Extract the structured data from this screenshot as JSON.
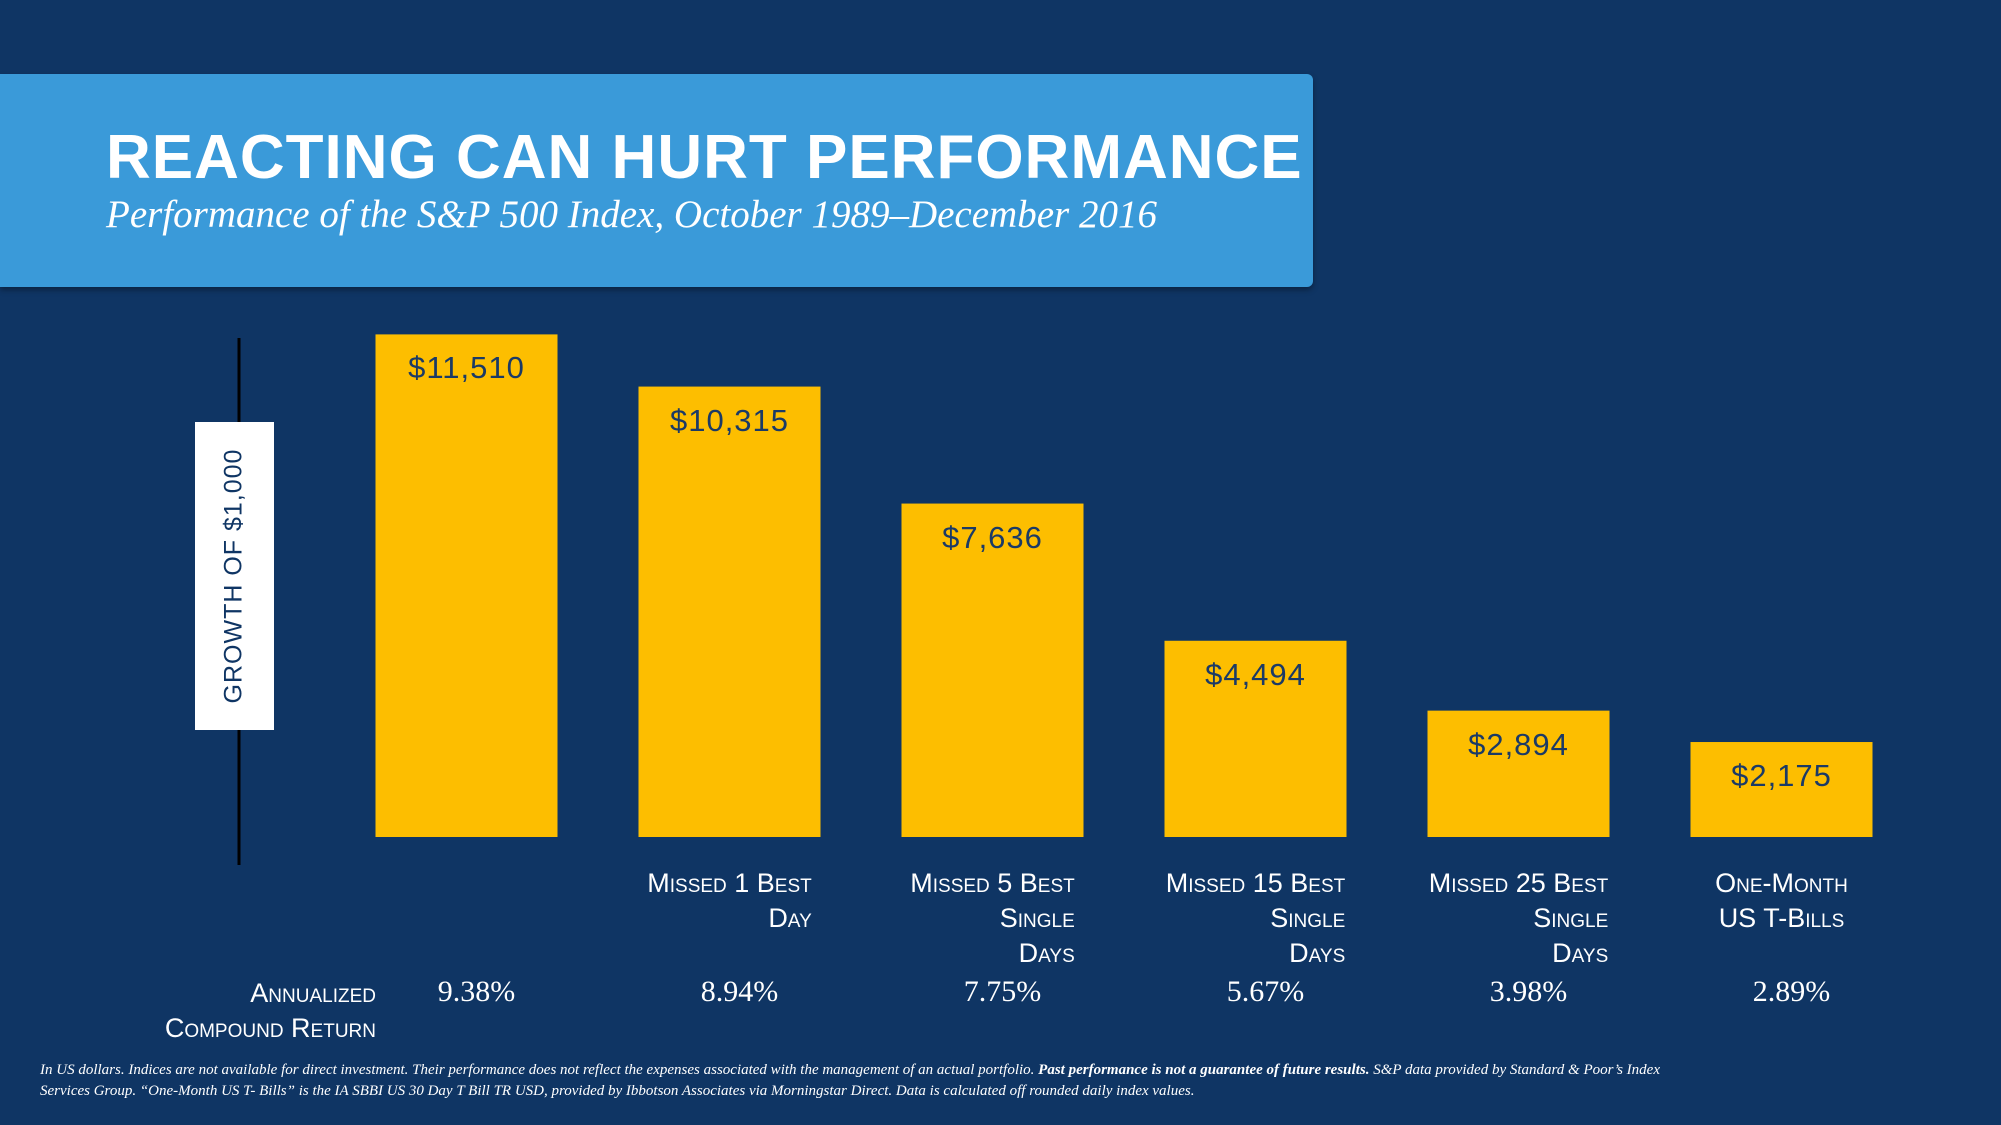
{
  "chart_data": {
    "type": "bar",
    "title": "REACTING CAN HURT PERFORMANCE",
    "subtitle": "Performance of the S&P 500 Index, October 1989–December 2016",
    "y_label": "GROWTH OF $1,000",
    "categories": [
      null,
      "Missed 1 Best\nDay",
      "Missed 5 Best\nSingle\nDays",
      "Missed 15 Best\nSingle\nDays",
      "Missed 25 Best\nSingle\nDays",
      "One-Month\nUS T-Bills"
    ],
    "values": [
      11510,
      10315,
      7636,
      4494,
      2894,
      2175
    ],
    "value_labels": [
      "$11,510",
      "$10,315",
      "$7,636",
      "$4,494",
      "$2,894",
      "$2,175"
    ],
    "color": "#fdbe00",
    "ylim": [
      0,
      12000
    ],
    "annualized_return": {
      "label": "Annualized\nCompound Return",
      "values": [
        9.38,
        8.94,
        7.75,
        5.67,
        3.98,
        2.89
      ],
      "value_labels": [
        "9.38%",
        "8.94%",
        "7.75%",
        "5.67%",
        "3.98%",
        "2.89%"
      ]
    },
    "footnote": [
      "In US dollars. Indices are not available for direct investment. Their performance does not reflect the expenses associated with the management of an actual portfolio. ",
      "Past performance is not a guarantee of future results.",
      " S&P data provided by Standard & Poor’s Index Services Group. “One-Month US T- Bills” is the IA SBBI US 30 Day T Bill TR USD, provided by Ibbotson Associates via Morningstar Direct. Data is calculated off rounded daily index values."
    ]
  }
}
